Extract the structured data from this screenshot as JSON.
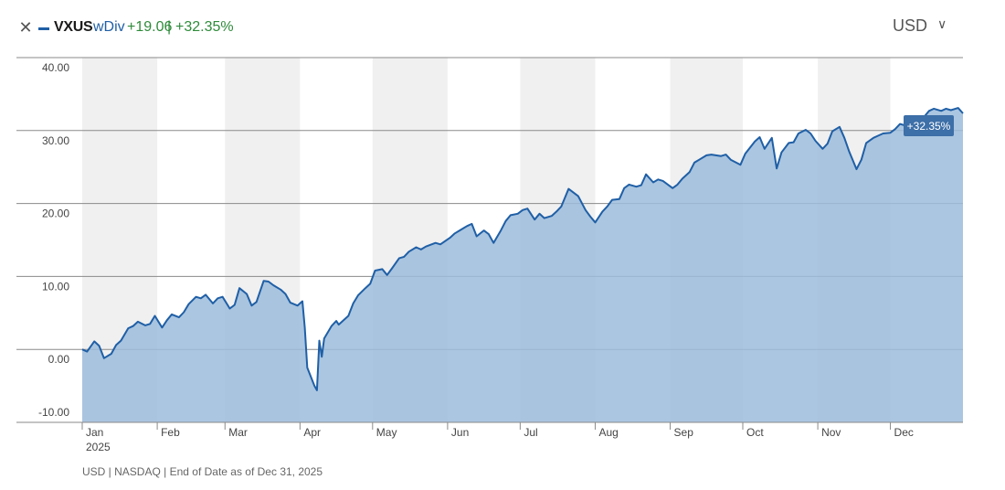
{
  "header": {
    "close_icon": "close-icon",
    "ticker": "VXUS",
    "variant": "wDiv",
    "change": "+19.06",
    "separator": "|",
    "change_pct": "+32.35%",
    "currency": "USD",
    "currency_chevron": "chevron-down-icon"
  },
  "footer": {
    "note": "USD | NASDAQ | End of Date as of Dec 31, 2025"
  },
  "colors": {
    "line": "#1f5fa6",
    "area": "#9cbcdc",
    "band": "#f0f0f0",
    "positive": "#2e8b3a",
    "badge": "#3d6fa8"
  },
  "chart_data": {
    "type": "area",
    "title": "",
    "xlabel": "",
    "ylabel": "",
    "ylim": [
      -10,
      40
    ],
    "yticks": [
      -10,
      0,
      10,
      20,
      30,
      40
    ],
    "ytick_labels": [
      "-10.00",
      "0.00",
      "10.00",
      "20.00",
      "30.00",
      "40.00"
    ],
    "xlim": [
      "2025-01-01",
      "2025-12-31"
    ],
    "xticks": [
      {
        "date": "2025-01-01",
        "label": "Jan"
      },
      {
        "date": "2025-02-01",
        "label": "Feb"
      },
      {
        "date": "2025-03-01",
        "label": "Mar"
      },
      {
        "date": "2025-04-01",
        "label": "Apr"
      },
      {
        "date": "2025-05-01",
        "label": "May"
      },
      {
        "date": "2025-06-01",
        "label": "Jun"
      },
      {
        "date": "2025-07-01",
        "label": "Jul"
      },
      {
        "date": "2025-08-01",
        "label": "Aug"
      },
      {
        "date": "2025-09-01",
        "label": "Sep"
      },
      {
        "date": "2025-10-01",
        "label": "Oct"
      },
      {
        "date": "2025-11-01",
        "label": "Nov"
      },
      {
        "date": "2025-12-01",
        "label": "Dec"
      }
    ],
    "year_label": "2025",
    "last_value_label": "+32.35%",
    "grid": true,
    "series": [
      {
        "points": [
          [
            "2025-01-01",
            0.0
          ],
          [
            "2025-01-03",
            -0.3
          ],
          [
            "2025-01-06",
            1.1
          ],
          [
            "2025-01-08",
            0.5
          ],
          [
            "2025-01-10",
            -1.2
          ],
          [
            "2025-01-13",
            -0.6
          ],
          [
            "2025-01-15",
            0.6
          ],
          [
            "2025-01-17",
            1.2
          ],
          [
            "2025-01-20",
            2.9
          ],
          [
            "2025-01-22",
            3.2
          ],
          [
            "2025-01-24",
            3.8
          ],
          [
            "2025-01-27",
            3.3
          ],
          [
            "2025-01-29",
            3.5
          ],
          [
            "2025-01-31",
            4.6
          ],
          [
            "2025-02-03",
            3.0
          ],
          [
            "2025-02-05",
            4.0
          ],
          [
            "2025-02-07",
            4.8
          ],
          [
            "2025-02-10",
            4.4
          ],
          [
            "2025-02-12",
            5.1
          ],
          [
            "2025-02-14",
            6.2
          ],
          [
            "2025-02-17",
            7.2
          ],
          [
            "2025-02-19",
            7.0
          ],
          [
            "2025-02-21",
            7.5
          ],
          [
            "2025-02-24",
            6.3
          ],
          [
            "2025-02-26",
            7.0
          ],
          [
            "2025-02-28",
            7.2
          ],
          [
            "2025-03-03",
            5.6
          ],
          [
            "2025-03-05",
            6.1
          ],
          [
            "2025-03-07",
            8.4
          ],
          [
            "2025-03-10",
            7.6
          ],
          [
            "2025-03-12",
            6.0
          ],
          [
            "2025-03-14",
            6.5
          ],
          [
            "2025-03-17",
            9.4
          ],
          [
            "2025-03-19",
            9.3
          ],
          [
            "2025-03-21",
            8.8
          ],
          [
            "2025-03-24",
            8.2
          ],
          [
            "2025-03-26",
            7.6
          ],
          [
            "2025-03-28",
            6.4
          ],
          [
            "2025-03-31",
            6.0
          ],
          [
            "2025-04-02",
            6.6
          ],
          [
            "2025-04-03",
            3.0
          ],
          [
            "2025-04-04",
            -2.5
          ],
          [
            "2025-04-07",
            -5.0
          ],
          [
            "2025-04-08",
            -5.6
          ],
          [
            "2025-04-09",
            1.2
          ],
          [
            "2025-04-10",
            -1.0
          ],
          [
            "2025-04-11",
            1.5
          ],
          [
            "2025-04-14",
            3.2
          ],
          [
            "2025-04-16",
            3.9
          ],
          [
            "2025-04-17",
            3.4
          ],
          [
            "2025-04-21",
            4.6
          ],
          [
            "2025-04-23",
            6.3
          ],
          [
            "2025-04-25",
            7.4
          ],
          [
            "2025-04-28",
            8.4
          ],
          [
            "2025-04-30",
            9.0
          ],
          [
            "2025-05-02",
            10.8
          ],
          [
            "2025-05-05",
            11.0
          ],
          [
            "2025-05-07",
            10.2
          ],
          [
            "2025-05-09",
            11.1
          ],
          [
            "2025-05-12",
            12.5
          ],
          [
            "2025-05-14",
            12.7
          ],
          [
            "2025-05-16",
            13.4
          ],
          [
            "2025-05-19",
            14.0
          ],
          [
            "2025-05-21",
            13.7
          ],
          [
            "2025-05-23",
            14.1
          ],
          [
            "2025-05-27",
            14.6
          ],
          [
            "2025-05-29",
            14.4
          ],
          [
            "2025-06-02",
            15.3
          ],
          [
            "2025-06-04",
            15.9
          ],
          [
            "2025-06-06",
            16.3
          ],
          [
            "2025-06-09",
            16.9
          ],
          [
            "2025-06-11",
            17.2
          ],
          [
            "2025-06-13",
            15.5
          ],
          [
            "2025-06-16",
            16.3
          ],
          [
            "2025-06-18",
            15.8
          ],
          [
            "2025-06-20",
            14.6
          ],
          [
            "2025-06-23",
            16.3
          ],
          [
            "2025-06-25",
            17.6
          ],
          [
            "2025-06-27",
            18.4
          ],
          [
            "2025-06-30",
            18.6
          ],
          [
            "2025-07-02",
            19.1
          ],
          [
            "2025-07-04",
            19.3
          ],
          [
            "2025-07-07",
            17.8
          ],
          [
            "2025-07-09",
            18.6
          ],
          [
            "2025-07-11",
            18.0
          ],
          [
            "2025-07-14",
            18.3
          ],
          [
            "2025-07-16",
            18.9
          ],
          [
            "2025-07-18",
            19.6
          ],
          [
            "2025-07-21",
            22.0
          ],
          [
            "2025-07-23",
            21.5
          ],
          [
            "2025-07-25",
            21.0
          ],
          [
            "2025-07-28",
            19.1
          ],
          [
            "2025-07-30",
            18.2
          ],
          [
            "2025-08-01",
            17.4
          ],
          [
            "2025-08-04",
            18.9
          ],
          [
            "2025-08-06",
            19.6
          ],
          [
            "2025-08-08",
            20.5
          ],
          [
            "2025-08-11",
            20.6
          ],
          [
            "2025-08-13",
            22.1
          ],
          [
            "2025-08-15",
            22.6
          ],
          [
            "2025-08-18",
            22.3
          ],
          [
            "2025-08-20",
            22.5
          ],
          [
            "2025-08-22",
            24.0
          ],
          [
            "2025-08-25",
            22.9
          ],
          [
            "2025-08-27",
            23.3
          ],
          [
            "2025-08-29",
            23.1
          ],
          [
            "2025-09-02",
            22.1
          ],
          [
            "2025-09-04",
            22.6
          ],
          [
            "2025-09-06",
            23.4
          ],
          [
            "2025-09-09",
            24.3
          ],
          [
            "2025-09-11",
            25.6
          ],
          [
            "2025-09-13",
            26.0
          ],
          [
            "2025-09-16",
            26.6
          ],
          [
            "2025-09-18",
            26.7
          ],
          [
            "2025-09-22",
            26.5
          ],
          [
            "2025-09-24",
            26.7
          ],
          [
            "2025-09-26",
            26.0
          ],
          [
            "2025-09-30",
            25.3
          ],
          [
            "2025-10-02",
            26.8
          ],
          [
            "2025-10-06",
            28.5
          ],
          [
            "2025-10-08",
            29.1
          ],
          [
            "2025-10-10",
            27.5
          ],
          [
            "2025-10-13",
            29.0
          ],
          [
            "2025-10-15",
            24.8
          ],
          [
            "2025-10-17",
            27.0
          ],
          [
            "2025-10-20",
            28.3
          ],
          [
            "2025-10-22",
            28.4
          ],
          [
            "2025-10-24",
            29.6
          ],
          [
            "2025-10-27",
            30.1
          ],
          [
            "2025-10-29",
            29.6
          ],
          [
            "2025-10-31",
            28.6
          ],
          [
            "2025-11-03",
            27.5
          ],
          [
            "2025-11-05",
            28.2
          ],
          [
            "2025-11-07",
            29.9
          ],
          [
            "2025-11-10",
            30.5
          ],
          [
            "2025-11-12",
            29.0
          ],
          [
            "2025-11-14",
            27.1
          ],
          [
            "2025-11-17",
            24.7
          ],
          [
            "2025-11-19",
            26.0
          ],
          [
            "2025-11-21",
            28.3
          ],
          [
            "2025-11-24",
            29.0
          ],
          [
            "2025-11-26",
            29.3
          ],
          [
            "2025-11-28",
            29.6
          ],
          [
            "2025-12-01",
            29.7
          ],
          [
            "2025-12-03",
            30.2
          ],
          [
            "2025-12-05",
            30.9
          ],
          [
            "2025-12-08",
            30.6
          ],
          [
            "2025-12-10",
            30.0
          ],
          [
            "2025-12-12",
            31.5
          ],
          [
            "2025-12-15",
            31.9
          ],
          [
            "2025-12-17",
            32.7
          ],
          [
            "2025-12-19",
            33.0
          ],
          [
            "2025-12-22",
            32.7
          ],
          [
            "2025-12-24",
            33.0
          ],
          [
            "2025-12-26",
            32.8
          ],
          [
            "2025-12-29",
            33.1
          ],
          [
            "2025-12-31",
            32.35
          ]
        ]
      }
    ]
  }
}
